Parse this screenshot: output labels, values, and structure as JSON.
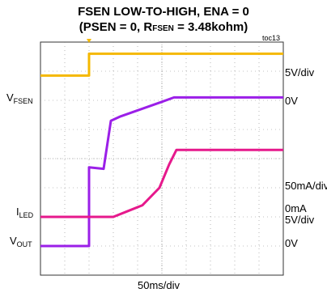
{
  "title_line1": "FSEN LOW-TO-HIGH, ENA = 0",
  "title_line2": "(PSEN = 0, R",
  "title_line2_sub": "FSEN",
  "title_line2_end": " = 3.48kohm)",
  "tag": "toc13",
  "time_scale": "50ms/div",
  "colors": {
    "vfsen": "#f5b800",
    "iled": "#e6198c",
    "vout": "#9b1fe8",
    "grid": "#888888"
  },
  "channels": {
    "vfsen": {
      "label_main": "V",
      "label_sub": "FSEN",
      "scale": "5V/div",
      "zero": "0V"
    },
    "iled": {
      "label_main": "I",
      "label_sub": "LED",
      "scale": "50mA/div",
      "zero": "0mA"
    },
    "vout": {
      "label_main": "V",
      "label_sub": "OUT",
      "scale": "5V/div",
      "zero": "0V"
    }
  },
  "chart_data": {
    "type": "line",
    "title": "FSEN LOW-TO-HIGH, ENA = 0 (PSEN = 0, RFSEN = 3.48kohm)",
    "x_unit": "div",
    "y_unit": "div",
    "xlim": [
      0,
      10
    ],
    "ylim": [
      0,
      8
    ],
    "divisions": {
      "x": 10,
      "y": 8
    },
    "series": [
      {
        "key": "vfsen",
        "points": [
          [
            0,
            6.85
          ],
          [
            2,
            6.85
          ],
          [
            2,
            7.6
          ],
          [
            10,
            7.6
          ]
        ]
      },
      {
        "key": "vout",
        "points": [
          [
            0,
            1.0
          ],
          [
            2,
            1.0
          ],
          [
            2,
            3.7
          ],
          [
            2.6,
            3.65
          ],
          [
            2.9,
            5.3
          ],
          [
            3.3,
            5.45
          ],
          [
            5.0,
            5.95
          ],
          [
            5.5,
            6.1
          ],
          [
            10,
            6.1
          ]
        ]
      },
      {
        "key": "iled",
        "points": [
          [
            0,
            2.0
          ],
          [
            3.0,
            2.0
          ],
          [
            3.6,
            2.2
          ],
          [
            4.2,
            2.4
          ],
          [
            4.9,
            3.0
          ],
          [
            5.3,
            3.8
          ],
          [
            5.6,
            4.3
          ],
          [
            10,
            4.3
          ]
        ]
      }
    ]
  }
}
